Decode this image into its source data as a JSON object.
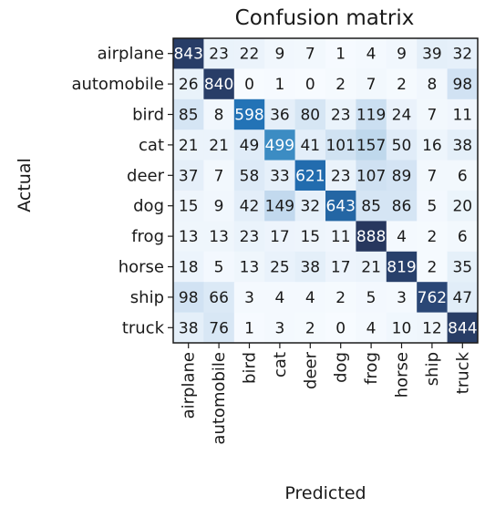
{
  "chart_data": {
    "type": "heatmap",
    "title": "Confusion matrix",
    "xlabel": "Predicted",
    "ylabel": "Actual",
    "x_categories": [
      "airplane",
      "automobile",
      "bird",
      "cat",
      "deer",
      "dog",
      "frog",
      "horse",
      "ship",
      "truck"
    ],
    "y_categories": [
      "airplane",
      "automobile",
      "bird",
      "cat",
      "deer",
      "dog",
      "frog",
      "horse",
      "ship",
      "truck"
    ],
    "values": [
      [
        843,
        23,
        22,
        9,
        7,
        1,
        4,
        9,
        39,
        32
      ],
      [
        26,
        840,
        0,
        1,
        0,
        2,
        7,
        2,
        8,
        98
      ],
      [
        85,
        8,
        598,
        36,
        80,
        23,
        119,
        24,
        7,
        11
      ],
      [
        21,
        21,
        49,
        499,
        41,
        101,
        157,
        50,
        16,
        38
      ],
      [
        37,
        7,
        58,
        33,
        621,
        23,
        107,
        89,
        7,
        6
      ],
      [
        15,
        9,
        42,
        149,
        32,
        643,
        85,
        86,
        5,
        20
      ],
      [
        13,
        13,
        23,
        17,
        15,
        11,
        888,
        4,
        2,
        6
      ],
      [
        18,
        5,
        13,
        25,
        38,
        17,
        21,
        819,
        2,
        35
      ],
      [
        98,
        66,
        3,
        4,
        4,
        2,
        5,
        3,
        762,
        47
      ],
      [
        38,
        76,
        1,
        3,
        2,
        0,
        4,
        10,
        12,
        844
      ]
    ],
    "colormap": [
      "#f7fbff",
      "#deebf7",
      "#c6dbef",
      "#9ecae1",
      "#6baed6",
      "#4292c6",
      "#2171b5",
      "#2a4a7a",
      "#27375e"
    ],
    "text_color_light": "#ffffff",
    "text_color_dark": "#1a1a1a",
    "grid": false,
    "legend": "none"
  }
}
